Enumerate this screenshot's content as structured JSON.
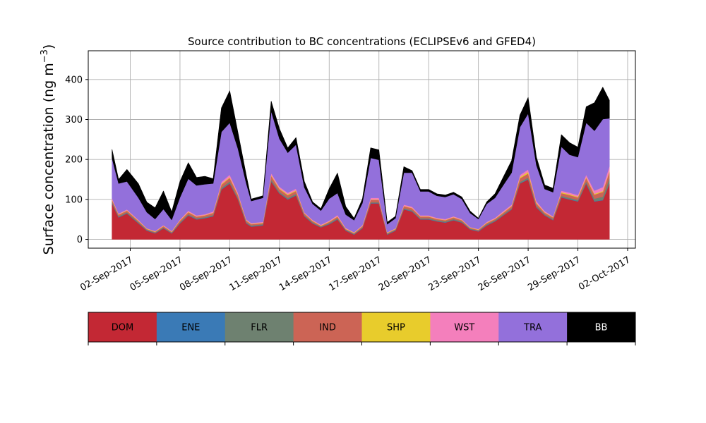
{
  "chart_data": {
    "type": "area",
    "stacked": true,
    "title": "Source contribution to BC concentrations (ECLIPSEv6 and GFED4)",
    "ylabel_main": "Surface concentration (ng m",
    "ylabel_sup": "−3",
    "ylabel_close": ")",
    "xlabel": "",
    "xlim": [
      0,
      31
    ],
    "ylim": [
      -22,
      472
    ],
    "grid": true,
    "x_ticks": [
      {
        "x": 1,
        "label": "02-Sep-2017"
      },
      {
        "x": 4,
        "label": "05-Sep-2017"
      },
      {
        "x": 7,
        "label": "08-Sep-2017"
      },
      {
        "x": 10,
        "label": "11-Sep-2017"
      },
      {
        "x": 13,
        "label": "14-Sep-2017"
      },
      {
        "x": 16,
        "label": "17-Sep-2017"
      },
      {
        "x": 19,
        "label": "20-Sep-2017"
      },
      {
        "x": 22,
        "label": "23-Sep-2017"
      },
      {
        "x": 25,
        "label": "26-Sep-2017"
      },
      {
        "x": 28,
        "label": "29-Sep-2017"
      },
      {
        "x": 31,
        "label": "02-Oct-2017"
      }
    ],
    "y_ticks": [
      {
        "y": 0,
        "label": "0"
      },
      {
        "y": 100,
        "label": "100"
      },
      {
        "y": 200,
        "label": "200"
      },
      {
        "y": 300,
        "label": "300"
      },
      {
        "y": 400,
        "label": "400"
      }
    ],
    "colorbar": {
      "labels": [
        "DOM",
        "ENE",
        "FLR",
        "IND",
        "SHP",
        "WST",
        "TRA",
        "BB"
      ],
      "colors": [
        "#c32834",
        "#3a7ab6",
        "#6e8170",
        "#cc6455",
        "#e8cc2c",
        "#f47fbc",
        "#9370db",
        "#000000"
      ],
      "text_colors": [
        "#000000",
        "#000000",
        "#000000",
        "#000000",
        "#000000",
        "#000000",
        "#000000",
        "#ffffff"
      ]
    },
    "x_anchor": [
      -0.1,
      0.3,
      0.8,
      1.5,
      2.0,
      2.5,
      3.0,
      3.5,
      4.0,
      4.5,
      5.0,
      5.5,
      6.0,
      6.5,
      7.0,
      7.5,
      8.0,
      8.3,
      9.0,
      9.5,
      10.0,
      10.5,
      11.0,
      11.5,
      12.0,
      12.5,
      13.0,
      13.5,
      14.0,
      14.5,
      15.0,
      15.5,
      16.0,
      16.5,
      17.0,
      17.5,
      18.0,
      18.5,
      19.0,
      19.5,
      20.0,
      20.5,
      21.0,
      21.5,
      22.0,
      22.5,
      23.0,
      23.5,
      24.0,
      24.5,
      25.0,
      25.5,
      26.0,
      26.5,
      27.0,
      27.5,
      28.0,
      28.5,
      29.0,
      29.5,
      29.9
    ],
    "series": [
      {
        "name": "DOM",
        "color": "#c32834",
        "values": [
          90,
          55,
          65,
          40,
          22,
          15,
          28,
          15,
          40,
          60,
          50,
          53,
          58,
          125,
          140,
          100,
          40,
          32,
          35,
          145,
          115,
          100,
          110,
          58,
          40,
          30,
          38,
          50,
          22,
          12,
          28,
          90,
          90,
          12,
          22,
          75,
          70,
          50,
          50,
          45,
          42,
          48,
          42,
          25,
          20,
          35,
          45,
          60,
          75,
          140,
          150,
          80,
          60,
          48,
          105,
          100,
          95,
          140,
          95,
          98,
          140
        ]
      },
      {
        "name": "ENE",
        "color": "#3a7ab6",
        "values": [
          1,
          1,
          1,
          1,
          1,
          1,
          1,
          1,
          1,
          1,
          1,
          1,
          1,
          1,
          1,
          1,
          1,
          1,
          1,
          1,
          1,
          1,
          1,
          1,
          1,
          1,
          1,
          1,
          1,
          1,
          1,
          1,
          1,
          1,
          1,
          1,
          1,
          1,
          1,
          1,
          1,
          1,
          1,
          1,
          1,
          1,
          1,
          1,
          1,
          1,
          1,
          1,
          1,
          1,
          1,
          1,
          1,
          1,
          1,
          1,
          1
        ]
      },
      {
        "name": "FLR",
        "color": "#6e8170",
        "values": [
          3,
          2,
          2,
          2,
          1,
          1,
          1,
          1,
          2,
          2,
          2,
          2,
          2,
          3,
          4,
          3,
          2,
          2,
          2,
          4,
          3,
          3,
          3,
          2,
          2,
          1,
          2,
          2,
          1,
          1,
          1,
          2,
          2,
          1,
          1,
          2,
          2,
          2,
          2,
          2,
          2,
          2,
          2,
          1,
          1,
          2,
          2,
          2,
          2,
          3,
          4,
          3,
          2,
          2,
          3,
          3,
          3,
          4,
          6,
          8,
          12
        ]
      },
      {
        "name": "IND",
        "color": "#cc6455",
        "values": [
          5,
          4,
          4,
          3,
          2,
          2,
          3,
          2,
          4,
          5,
          4,
          4,
          5,
          8,
          9,
          7,
          4,
          3,
          3,
          9,
          7,
          7,
          7,
          4,
          3,
          2,
          3,
          4,
          2,
          2,
          3,
          6,
          6,
          2,
          2,
          5,
          5,
          4,
          4,
          3,
          3,
          4,
          3,
          2,
          2,
          3,
          3,
          4,
          5,
          9,
          10,
          6,
          4,
          4,
          7,
          7,
          6,
          9,
          10,
          12,
          16
        ]
      },
      {
        "name": "SHP",
        "color": "#e8cc2c",
        "values": [
          1,
          1,
          1,
          1,
          1,
          1,
          1,
          1,
          1,
          1,
          1,
          1,
          1,
          2,
          2,
          2,
          1,
          1,
          1,
          2,
          2,
          2,
          2,
          1,
          1,
          1,
          1,
          1,
          1,
          1,
          1,
          1,
          1,
          1,
          1,
          1,
          1,
          1,
          1,
          1,
          1,
          1,
          1,
          1,
          1,
          1,
          1,
          1,
          1,
          3,
          4,
          2,
          1,
          1,
          2,
          2,
          2,
          2,
          2,
          2,
          2
        ]
      },
      {
        "name": "WST",
        "color": "#f47fbc",
        "values": [
          3,
          2,
          2,
          2,
          1,
          1,
          2,
          1,
          2,
          3,
          2,
          2,
          3,
          5,
          6,
          4,
          2,
          2,
          2,
          5,
          4,
          4,
          4,
          2,
          2,
          2,
          2,
          3,
          2,
          1,
          2,
          4,
          4,
          1,
          1,
          3,
          3,
          2,
          2,
          2,
          2,
          2,
          2,
          1,
          1,
          2,
          2,
          3,
          3,
          5,
          6,
          4,
          3,
          2,
          4,
          4,
          4,
          6,
          8,
          10,
          12
        ]
      },
      {
        "name": "TRA",
        "color": "#9370db",
        "values": [
          100,
          75,
          70,
          55,
          40,
          30,
          40,
          28,
          55,
          80,
          75,
          75,
          70,
          125,
          130,
          110,
          90,
          55,
          60,
          155,
          120,
          100,
          110,
          62,
          40,
          35,
          55,
          55,
          33,
          30,
          55,
          100,
          95,
          20,
          25,
          80,
          85,
          60,
          60,
          55,
          55,
          55,
          50,
          35,
          25,
          45,
          50,
          65,
          80,
          120,
          140,
          90,
          55,
          60,
          110,
          95,
          95,
          130,
          150,
          170,
          120
        ]
      },
      {
        "name": "BB",
        "color": "#000000",
        "values": [
          22,
          10,
          30,
          35,
          25,
          28,
          45,
          20,
          40,
          40,
          20,
          20,
          12,
          60,
          80,
          40,
          20,
          5,
          5,
          25,
          25,
          12,
          18,
          15,
          5,
          5,
          25,
          50,
          20,
          5,
          10,
          25,
          25,
          5,
          5,
          15,
          5,
          5,
          5,
          5,
          5,
          5,
          5,
          5,
          2,
          5,
          10,
          20,
          30,
          30,
          40,
          20,
          10,
          10,
          30,
          30,
          25,
          40,
          70,
          80,
          45
        ]
      }
    ]
  }
}
